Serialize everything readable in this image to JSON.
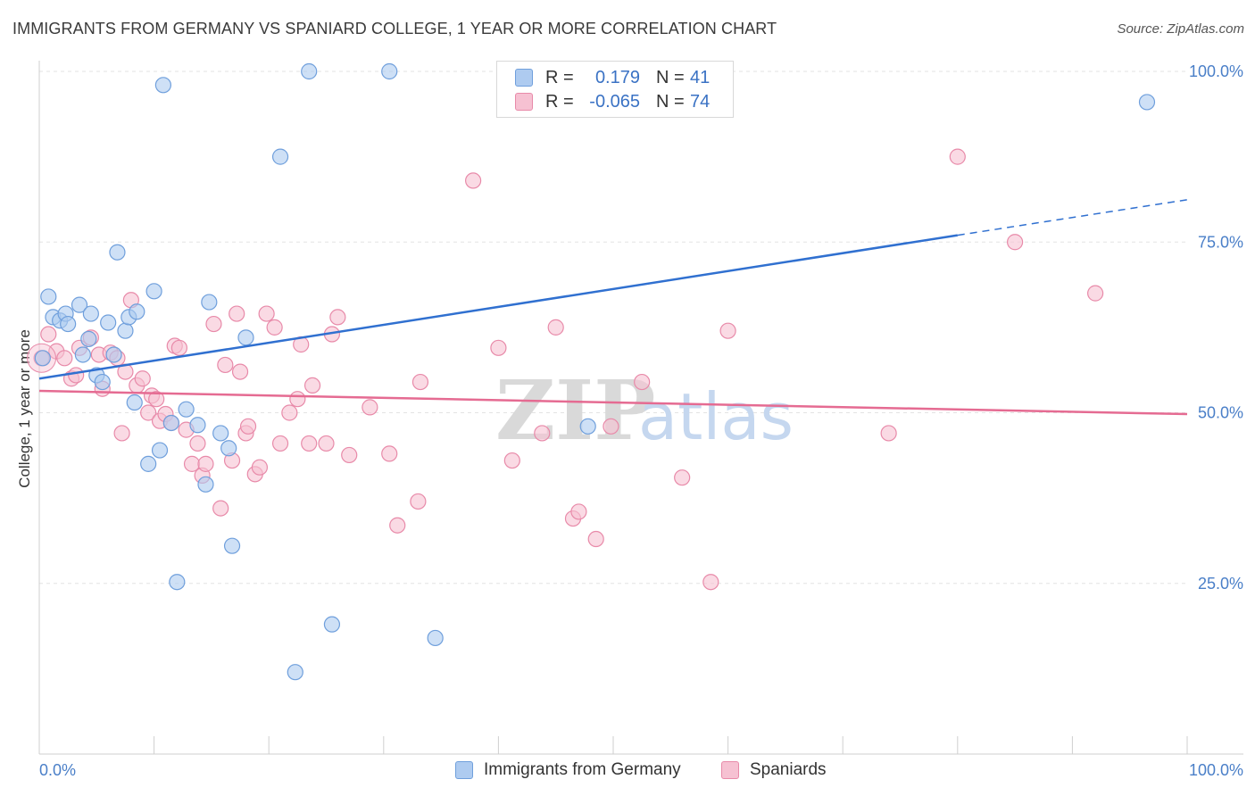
{
  "header": {
    "title": "IMMIGRANTS FROM GERMANY VS SPANIARD COLLEGE, 1 YEAR OR MORE CORRELATION CHART",
    "source": "Source: ZipAtlas.com"
  },
  "watermark": {
    "zip": "ZIP",
    "atlas": "atlas"
  },
  "legend": {
    "rows": [
      {
        "r_label": "R =",
        "r_value": "0.179",
        "n_label": "N =",
        "n_value": "41"
      },
      {
        "r_label": "R =",
        "r_value": "-0.065",
        "n_label": "N =",
        "n_value": "74"
      }
    ]
  },
  "bottom_legend": {
    "germany": "Immigrants from Germany",
    "spaniards": "Spaniards"
  },
  "colors": {
    "blue_fill": "#aecbf0",
    "blue_stroke": "#6f9fdc",
    "blue_line": "#3070d0",
    "pink_fill": "#f6c1d2",
    "pink_stroke": "#e88aa9",
    "pink_line": "#e56b92",
    "tick_text": "#4a7fc8",
    "grid": "#e3e3e3"
  },
  "chart_data": {
    "type": "scatter",
    "title": "IMMIGRANTS FROM GERMANY VS SPANIARD COLLEGE, 1 YEAR OR MORE CORRELATION CHART",
    "xlabel": "",
    "ylabel": "College, 1 year or more",
    "xlim": [
      0,
      100
    ],
    "ylim": [
      0,
      100
    ],
    "x_tick_labels": [
      "0.0%",
      "100.0%"
    ],
    "y_ticks": [
      {
        "value": 25,
        "label": "25.0%"
      },
      {
        "value": 50,
        "label": "50.0%"
      },
      {
        "value": 75,
        "label": "75.0%"
      },
      {
        "value": 100,
        "label": "100.0%"
      }
    ],
    "grid": true,
    "series": [
      {
        "name": "Immigrants from Germany",
        "color": "blue",
        "r": 0.179,
        "n": 41,
        "trend": {
          "x0": 0,
          "y0": 55.0,
          "x1": 80,
          "y1": 76.0,
          "dashed_to_x": 100,
          "dashed_to_y": 81.2
        },
        "points": [
          [
            0.3,
            58.0
          ],
          [
            0.8,
            67.0
          ],
          [
            1.2,
            64.0
          ],
          [
            1.8,
            63.5
          ],
          [
            2.3,
            64.5
          ],
          [
            2.5,
            63.0
          ],
          [
            3.5,
            65.8
          ],
          [
            3.8,
            58.5
          ],
          [
            4.3,
            60.8
          ],
          [
            4.5,
            64.5
          ],
          [
            5.0,
            55.5
          ],
          [
            5.5,
            54.5
          ],
          [
            6.0,
            63.2
          ],
          [
            6.5,
            58.5
          ],
          [
            6.8,
            73.5
          ],
          [
            7.5,
            62.0
          ],
          [
            7.8,
            64.0
          ],
          [
            8.3,
            51.5
          ],
          [
            8.5,
            64.8
          ],
          [
            9.5,
            42.5
          ],
          [
            10.0,
            67.8
          ],
          [
            10.5,
            44.5
          ],
          [
            10.8,
            98.0
          ],
          [
            11.5,
            48.5
          ],
          [
            12.0,
            25.2
          ],
          [
            12.8,
            50.5
          ],
          [
            13.8,
            48.2
          ],
          [
            14.5,
            39.5
          ],
          [
            14.8,
            66.2
          ],
          [
            15.8,
            47.0
          ],
          [
            16.5,
            44.8
          ],
          [
            16.8,
            30.5
          ],
          [
            18.0,
            61.0
          ],
          [
            21.0,
            87.5
          ],
          [
            22.3,
            12.0
          ],
          [
            23.5,
            100.0
          ],
          [
            25.5,
            19.0
          ],
          [
            30.5,
            100.0
          ],
          [
            34.5,
            17.0
          ],
          [
            47.8,
            48.0
          ],
          [
            96.5,
            95.5
          ]
        ]
      },
      {
        "name": "Spaniards",
        "color": "pink",
        "r": -0.065,
        "n": 74,
        "trend": {
          "x0": 0,
          "y0": 53.2,
          "x1": 100,
          "y1": 49.8
        },
        "points": [
          [
            0.2,
            58.0
          ],
          [
            0.8,
            61.5
          ],
          [
            1.5,
            59.0
          ],
          [
            2.2,
            58.0
          ],
          [
            2.8,
            55.0
          ],
          [
            3.2,
            55.5
          ],
          [
            3.5,
            59.5
          ],
          [
            4.5,
            61.0
          ],
          [
            5.2,
            58.5
          ],
          [
            5.5,
            53.5
          ],
          [
            6.2,
            58.8
          ],
          [
            6.8,
            58.0
          ],
          [
            7.2,
            47.0
          ],
          [
            7.5,
            56.0
          ],
          [
            8.0,
            66.5
          ],
          [
            8.5,
            54.0
          ],
          [
            9.0,
            55.0
          ],
          [
            9.5,
            50.0
          ],
          [
            9.8,
            52.5
          ],
          [
            10.2,
            52.0
          ],
          [
            10.5,
            48.8
          ],
          [
            11.0,
            49.8
          ],
          [
            11.5,
            48.5
          ],
          [
            11.8,
            59.8
          ],
          [
            12.2,
            59.5
          ],
          [
            12.8,
            47.5
          ],
          [
            13.3,
            42.5
          ],
          [
            13.8,
            45.5
          ],
          [
            14.2,
            40.8
          ],
          [
            14.5,
            42.5
          ],
          [
            15.2,
            63.0
          ],
          [
            15.8,
            36.0
          ],
          [
            16.2,
            57.0
          ],
          [
            16.8,
            43.0
          ],
          [
            17.2,
            64.5
          ],
          [
            17.5,
            56.0
          ],
          [
            18.0,
            47.0
          ],
          [
            18.2,
            48.0
          ],
          [
            18.8,
            41.0
          ],
          [
            19.2,
            42.0
          ],
          [
            19.8,
            64.5
          ],
          [
            20.5,
            62.5
          ],
          [
            21.0,
            45.5
          ],
          [
            21.8,
            50.0
          ],
          [
            22.5,
            52.0
          ],
          [
            22.8,
            60.0
          ],
          [
            23.5,
            45.5
          ],
          [
            23.8,
            54.0
          ],
          [
            25.0,
            45.5
          ],
          [
            25.5,
            61.5
          ],
          [
            26.0,
            64.0
          ],
          [
            27.0,
            43.8
          ],
          [
            28.8,
            50.8
          ],
          [
            30.5,
            44.0
          ],
          [
            31.2,
            33.5
          ],
          [
            33.0,
            37.0
          ],
          [
            33.2,
            54.5
          ],
          [
            37.8,
            84.0
          ],
          [
            40.0,
            59.5
          ],
          [
            41.2,
            43.0
          ],
          [
            43.8,
            47.0
          ],
          [
            45.0,
            62.5
          ],
          [
            46.5,
            34.5
          ],
          [
            47.0,
            35.5
          ],
          [
            48.5,
            31.5
          ],
          [
            49.8,
            48.0
          ],
          [
            52.5,
            54.5
          ],
          [
            56.0,
            40.5
          ],
          [
            58.5,
            25.2
          ],
          [
            60.0,
            62.0
          ],
          [
            74.0,
            47.0
          ],
          [
            80.0,
            87.5
          ],
          [
            92.0,
            67.5
          ],
          [
            85.0,
            75.0
          ]
        ]
      }
    ]
  }
}
